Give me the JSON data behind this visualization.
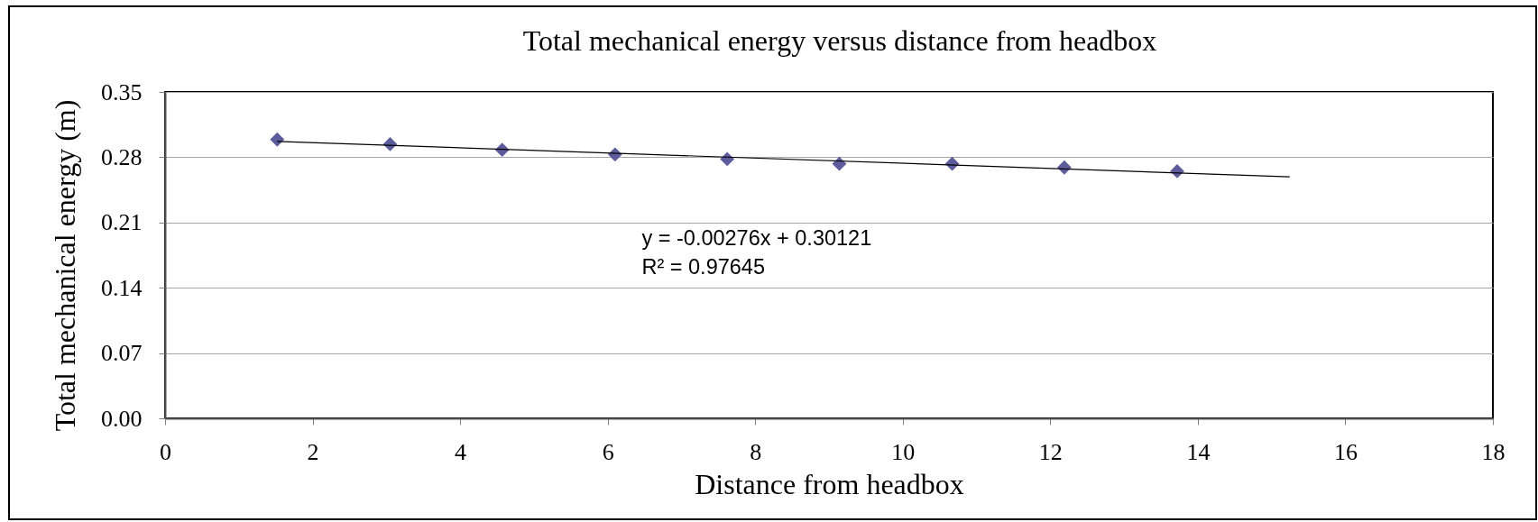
{
  "chart_data": {
    "type": "scatter",
    "title": "Total mechanical energy versus distance from headbox",
    "xlabel": "Distance from headbox",
    "ylabel": "Total mechanical energy (m)",
    "annotations": [
      "y = -0.00276x + 0.30121",
      "R² = 0.97645"
    ],
    "x": [
      1.52,
      3.05,
      4.57,
      6.1,
      7.62,
      9.14,
      10.67,
      12.19,
      13.72
    ],
    "series": [
      {
        "color": "#5c5c9c",
        "values": [
          0.299,
          0.294,
          0.288,
          0.283,
          0.278,
          0.273,
          0.273,
          0.269,
          0.265
        ]
      },
      {
        "type": "line",
        "color": "#000000",
        "marker": "none",
        "x": [
          1.52,
          15.24
        ],
        "values": [
          0.297,
          0.259
        ]
      }
    ],
    "xlim": [
      0,
      18
    ],
    "ylim": [
      0,
      0.35
    ],
    "xticks": [
      0,
      2,
      4,
      6,
      8,
      10,
      12,
      14,
      16,
      18
    ],
    "yticks": [
      {
        "value": 0,
        "label": "0.00"
      },
      0.07,
      0.14,
      0.21,
      0.28,
      0.35
    ],
    "grid": "y",
    "marker": "diamond"
  }
}
